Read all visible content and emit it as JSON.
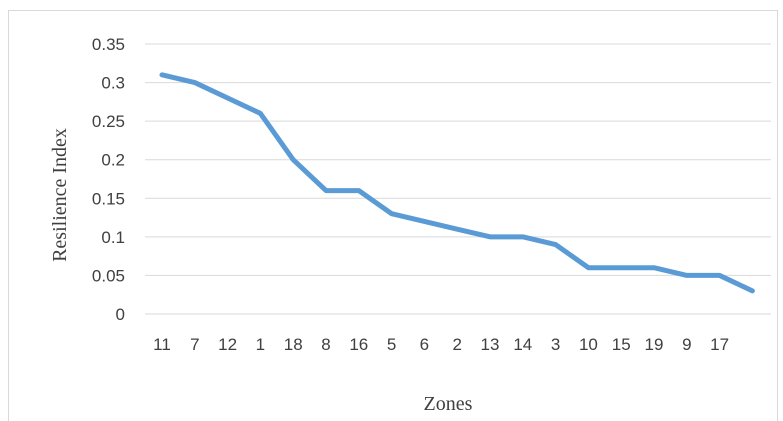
{
  "chart_data": {
    "type": "line",
    "title": "",
    "xlabel": "Zones",
    "ylabel": "Resilience Index",
    "categories": [
      "11",
      "7",
      "12",
      "1",
      "18",
      "8",
      "16",
      "5",
      "6",
      "2",
      "13",
      "14",
      "3",
      "10",
      "15",
      "19",
      "9",
      "17",
      ""
    ],
    "series": [
      {
        "values": [
          0.31,
          0.3,
          0.28,
          0.26,
          0.2,
          0.16,
          0.16,
          0.13,
          0.12,
          0.11,
          0.1,
          0.1,
          0.09,
          0.06,
          0.06,
          0.06,
          0.05,
          0.05,
          0.03
        ]
      }
    ],
    "ylim": [
      0,
      0.35
    ],
    "yticks": [
      "0",
      "0.05",
      "0.1",
      "0.15",
      "0.2",
      "0.25",
      "0.3",
      "0.35"
    ],
    "grid": true,
    "legend": "none",
    "line_color": "#5b9bd5",
    "grid_color": "#d9d9d9"
  }
}
